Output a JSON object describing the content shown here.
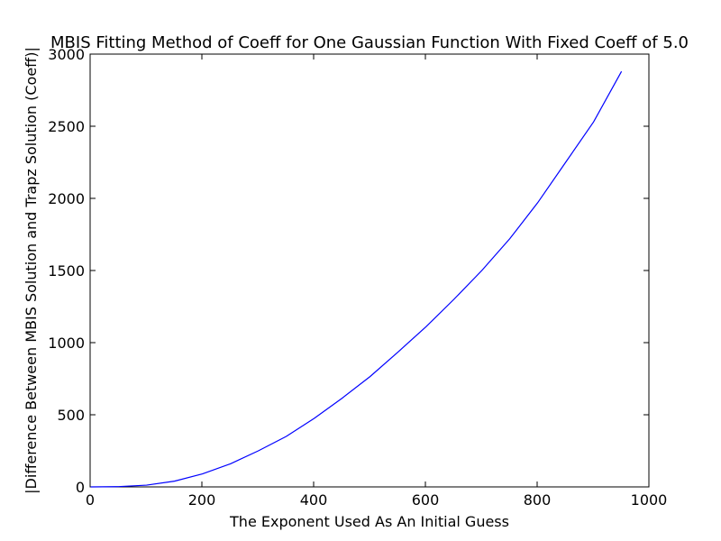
{
  "chart_data": {
    "type": "line",
    "title": "MBIS Fitting Method of Coeff for One Gaussian Function With Fixed Coeff of 5.0",
    "xlabel": "The Exponent Used As An Initial Guess",
    "ylabel": "|Difference Between MBIS Solution and Trapz Solution (Coeff)|",
    "xlim": [
      0,
      1000
    ],
    "ylim": [
      0,
      3000
    ],
    "xticks": [
      0,
      200,
      400,
      600,
      800,
      1000
    ],
    "yticks": [
      0,
      500,
      1000,
      1500,
      2000,
      2500,
      3000
    ],
    "grid": false,
    "series": [
      {
        "color": "#0000ff",
        "x": [
          1,
          51,
          101,
          151,
          201,
          251,
          301,
          351,
          401,
          451,
          501,
          551,
          601,
          651,
          701,
          751,
          801,
          851,
          901,
          951
        ],
        "y": [
          0,
          2,
          12,
          40,
          90,
          160,
          250,
          350,
          475,
          615,
          765,
          935,
          1110,
          1300,
          1500,
          1720,
          1970,
          2250,
          2530,
          2880
        ]
      }
    ]
  }
}
